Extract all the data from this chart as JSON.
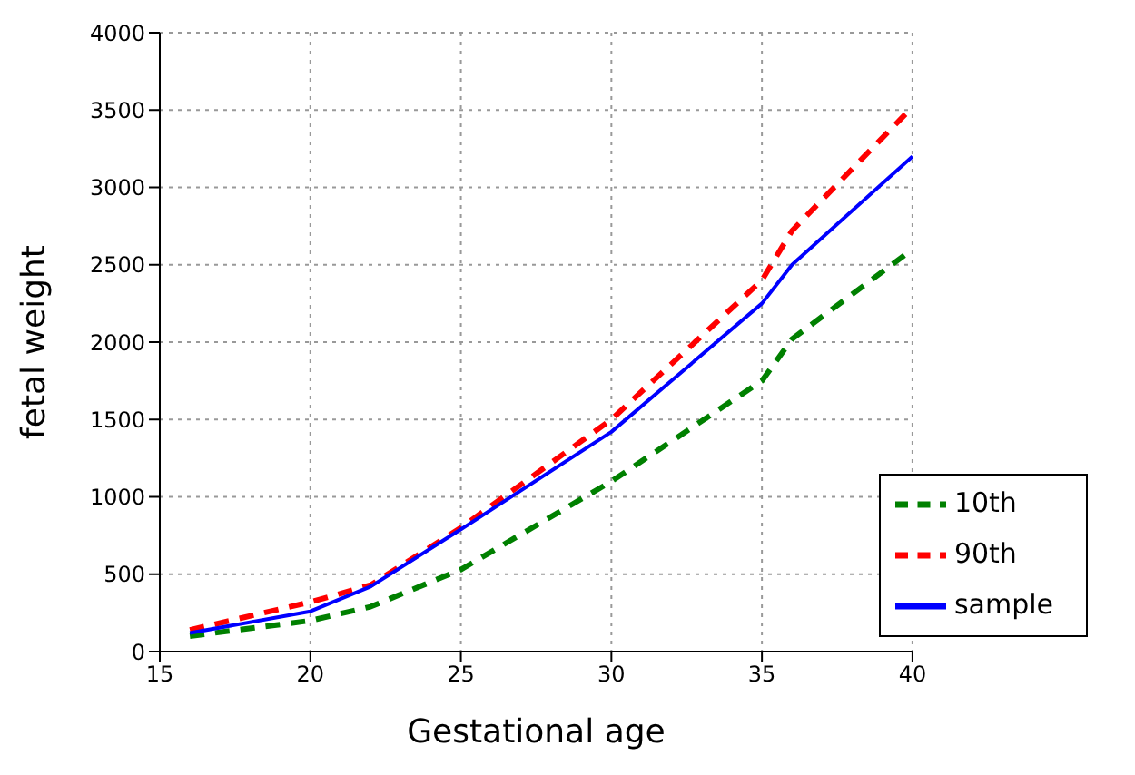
{
  "chart_data": {
    "type": "line",
    "xlabel": "Gestational age",
    "ylabel": "fetal weight",
    "x": [
      16,
      20,
      22,
      25,
      30,
      35,
      36,
      40
    ],
    "series": [
      {
        "name": "10th",
        "color": "#008000",
        "line_style": "dashed",
        "values": [
          100,
          200,
          290,
          530,
          1100,
          1750,
          2020,
          2600
        ]
      },
      {
        "name": "90th",
        "color": "#ff0000",
        "line_style": "dashed",
        "values": [
          140,
          320,
          430,
          800,
          1500,
          2400,
          2720,
          3520
        ]
      },
      {
        "name": "sample",
        "color": "#0000ff",
        "line_style": "solid",
        "values": [
          120,
          260,
          420,
          790,
          1420,
          2250,
          2500,
          3200
        ]
      }
    ],
    "xlim": [
      15,
      40
    ],
    "xticks": [
      15,
      20,
      25,
      30,
      35,
      40
    ],
    "ylim": [
      0,
      4000
    ],
    "yticks": [
      0,
      500,
      1000,
      1500,
      2000,
      2500,
      3000,
      3500,
      4000
    ],
    "grid": true,
    "legend": "bottom right",
    "marker": "none"
  }
}
